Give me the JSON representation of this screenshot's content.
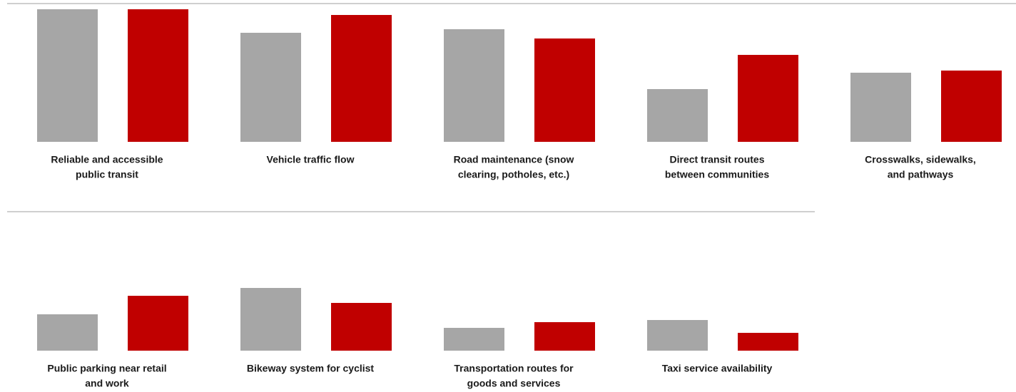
{
  "chart_data": [
    {
      "type": "bar",
      "categories": [
        [
          "Reliable and accessible",
          "public transit"
        ],
        [
          "Vehicle traffic flow"
        ],
        [
          "Road maintenance (snow",
          "clearing, potholes, etc.)"
        ],
        [
          "Direct transit routes",
          "between communities"
        ],
        [
          "Crosswalks, sidewalks,",
          "and pathways"
        ]
      ],
      "series": [
        {
          "color": "#a6a6a6",
          "values": [
            186,
            153,
            158,
            74,
            97
          ]
        },
        {
          "color": "#c00000",
          "values": [
            186,
            178,
            145,
            122,
            100
          ]
        }
      ],
      "ylim": [
        0,
        194
      ]
    },
    {
      "type": "bar",
      "categories": [
        [
          "Public parking near retail",
          "and work"
        ],
        [
          "Bikeway system for cyclist"
        ],
        [
          "Transportation routes for",
          "goods and services"
        ],
        [
          "Taxi service availability"
        ]
      ],
      "series": [
        {
          "color": "#a6a6a6",
          "values": [
            51,
            88,
            32,
            43
          ]
        },
        {
          "color": "#c00000",
          "values": [
            77,
            67,
            40,
            25
          ]
        }
      ],
      "ylim": [
        0,
        194
      ]
    }
  ]
}
